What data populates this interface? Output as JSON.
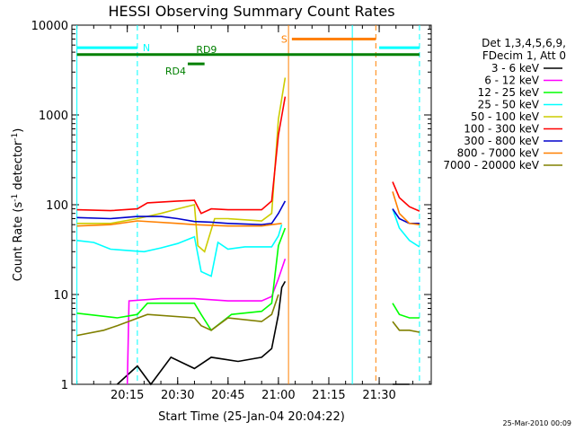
{
  "chart_data": {
    "type": "line",
    "title": "HESSI Observing Summary Count Rates",
    "xlabel": "Start Time (25-Jan-04 20:04:22)",
    "ylabel_main": "Count Rate (s",
    "ylabel_sup1": "-1",
    "ylabel_mid": " detector",
    "ylabel_sup2": "-1",
    "ylabel_end": ")",
    "x_range_min": [
      20.0,
      21.75
    ],
    "y_scale": "log",
    "ylim": [
      1,
      10000
    ],
    "x_ticks": [
      {
        "label": "20:15",
        "m": 15
      },
      {
        "label": "20:30",
        "m": 30
      },
      {
        "label": "20:45",
        "m": 45
      },
      {
        "label": "21:00",
        "m": 60
      },
      {
        "label": "21:15",
        "m": 75
      },
      {
        "label": "21:30",
        "m": 90
      }
    ],
    "y_ticks": [
      {
        "label": "1",
        "v": 1
      },
      {
        "label": "10",
        "v": 10
      },
      {
        "label": "100",
        "v": 100
      },
      {
        "label": "1000",
        "v": 1000
      },
      {
        "label": "10000",
        "v": 10000
      }
    ],
    "legend_header": [
      "Det 1,3,4,5,6,9,",
      "FDecim 1, Att 0"
    ],
    "legend_position": "right",
    "timestamp": "25-Mar-2010 00:09",
    "series": [
      {
        "name": "3 - 6 keV",
        "color": "#000000",
        "points": [
          [
            12,
            1
          ],
          [
            18,
            1.6
          ],
          [
            22,
            1
          ],
          [
            28,
            2
          ],
          [
            35,
            1.5
          ],
          [
            40,
            2
          ],
          [
            48,
            1.8
          ],
          [
            55,
            2
          ],
          [
            58,
            2.5
          ],
          [
            60,
            6
          ],
          [
            61,
            12
          ],
          [
            62,
            14
          ]
        ],
        "points2": [
          [
            94,
            1
          ],
          [
            99,
            1
          ]
        ]
      },
      {
        "name": "6 - 12 keV",
        "color": "#ff00ff",
        "points": [
          [
            15,
            1
          ],
          [
            15.5,
            8.5
          ],
          [
            25,
            9
          ],
          [
            35,
            9
          ],
          [
            45,
            8.5
          ],
          [
            55,
            8.5
          ],
          [
            58,
            9.5
          ],
          [
            60,
            15
          ],
          [
            62,
            25
          ]
        ],
        "points2": []
      },
      {
        "name": "12 - 25 keV",
        "color": "#00ff00",
        "points": [
          [
            0,
            6.2
          ],
          [
            12,
            5.5
          ],
          [
            18,
            6
          ],
          [
            21,
            8
          ],
          [
            35,
            8
          ],
          [
            37,
            6
          ],
          [
            40,
            4
          ],
          [
            46,
            6
          ],
          [
            55,
            6.5
          ],
          [
            58,
            8
          ],
          [
            60,
            35
          ],
          [
            62,
            55
          ]
        ],
        "points2": [
          [
            94,
            8
          ],
          [
            96,
            6
          ],
          [
            99,
            5.5
          ],
          [
            102,
            5.5
          ]
        ]
      },
      {
        "name": "25 - 50 keV",
        "color": "#00ffff",
        "points": [
          [
            0,
            40
          ],
          [
            5,
            38
          ],
          [
            10,
            32
          ],
          [
            15,
            31
          ],
          [
            20,
            30
          ],
          [
            25,
            33
          ],
          [
            30,
            37
          ],
          [
            35,
            44
          ],
          [
            37,
            18
          ],
          [
            40,
            16
          ],
          [
            42,
            38
          ],
          [
            45,
            32
          ],
          [
            50,
            34
          ],
          [
            55,
            34
          ],
          [
            58,
            34
          ],
          [
            60,
            45
          ],
          [
            61,
            60
          ]
        ],
        "points2": [
          [
            94,
            90
          ],
          [
            96,
            55
          ],
          [
            99,
            40
          ],
          [
            102,
            34
          ]
        ]
      },
      {
        "name": "50 - 100 keV",
        "color": "#cccc00",
        "points": [
          [
            0,
            62
          ],
          [
            10,
            62
          ],
          [
            18,
            70
          ],
          [
            25,
            80
          ],
          [
            30,
            90
          ],
          [
            35,
            100
          ],
          [
            36,
            35
          ],
          [
            38,
            30
          ],
          [
            41,
            70
          ],
          [
            45,
            70
          ],
          [
            55,
            66
          ],
          [
            58,
            80
          ],
          [
            60,
            900
          ],
          [
            62,
            2600
          ]
        ],
        "points2": []
      },
      {
        "name": "100 - 300 keV",
        "color": "#ff0000",
        "points": [
          [
            0,
            88
          ],
          [
            10,
            86
          ],
          [
            18,
            90
          ],
          [
            21,
            105
          ],
          [
            30,
            110
          ],
          [
            35,
            112
          ],
          [
            37,
            80
          ],
          [
            40,
            90
          ],
          [
            45,
            88
          ],
          [
            55,
            88
          ],
          [
            58,
            110
          ],
          [
            60,
            600
          ],
          [
            62,
            1600
          ]
        ],
        "points2": [
          [
            94,
            180
          ],
          [
            96,
            120
          ],
          [
            99,
            95
          ],
          [
            102,
            85
          ]
        ]
      },
      {
        "name": "300 - 800 keV",
        "color": "#0000cc",
        "points": [
          [
            0,
            72
          ],
          [
            10,
            70
          ],
          [
            18,
            74
          ],
          [
            25,
            74
          ],
          [
            30,
            70
          ],
          [
            35,
            65
          ],
          [
            40,
            64
          ],
          [
            45,
            62
          ],
          [
            55,
            60
          ],
          [
            58,
            62
          ],
          [
            60,
            80
          ],
          [
            62,
            110
          ]
        ],
        "points2": [
          [
            94,
            90
          ],
          [
            96,
            70
          ],
          [
            99,
            62
          ],
          [
            102,
            62
          ]
        ]
      },
      {
        "name": "800 - 7000 keV",
        "color": "#ff8000",
        "points": [
          [
            0,
            58
          ],
          [
            10,
            60
          ],
          [
            18,
            66
          ],
          [
            30,
            62
          ],
          [
            35,
            60
          ],
          [
            45,
            58
          ],
          [
            55,
            58
          ],
          [
            58,
            60
          ],
          [
            61,
            62
          ]
        ],
        "points2": [
          [
            94,
            140
          ],
          [
            96,
            80
          ],
          [
            99,
            62
          ],
          [
            102,
            60
          ]
        ]
      },
      {
        "name": "7000 - 20000 keV",
        "color": "#808000",
        "points": [
          [
            0,
            3.5
          ],
          [
            8,
            4
          ],
          [
            12,
            4.5
          ],
          [
            21,
            6
          ],
          [
            35,
            5.5
          ],
          [
            37,
            4.5
          ],
          [
            40,
            4
          ],
          [
            45,
            5.5
          ],
          [
            55,
            5
          ],
          [
            58,
            6
          ],
          [
            60,
            10
          ]
        ],
        "points2": [
          [
            94,
            5
          ],
          [
            96,
            4
          ],
          [
            99,
            4
          ],
          [
            102,
            3.8
          ]
        ]
      }
    ],
    "flags": [
      {
        "label": "N",
        "color": "#00ffff",
        "y": 5600,
        "segments": [
          [
            0,
            18
          ],
          [
            90,
            102
          ]
        ]
      },
      {
        "label": "S",
        "color": "#ff8000",
        "y": 7000,
        "segments": [
          [
            64,
            89
          ]
        ]
      },
      {
        "label": "RD9",
        "color": "#008000",
        "y": 4700,
        "segments": [
          [
            0,
            102
          ]
        ]
      },
      {
        "label": "RD4",
        "color": "#008000",
        "y": 3700,
        "segments": [
          [
            33,
            38
          ]
        ]
      }
    ],
    "vlines": [
      {
        "m": 0,
        "color": "#00ffff",
        "dash": false
      },
      {
        "m": 18,
        "color": "#00ffff",
        "dash": true
      },
      {
        "m": 63,
        "color": "#ff8000",
        "dash": false
      },
      {
        "m": 82,
        "color": "#00ffff",
        "dash": false
      },
      {
        "m": 89,
        "color": "#ff8000",
        "dash": true
      },
      {
        "m": 102,
        "color": "#00ffff",
        "dash": true
      }
    ]
  }
}
